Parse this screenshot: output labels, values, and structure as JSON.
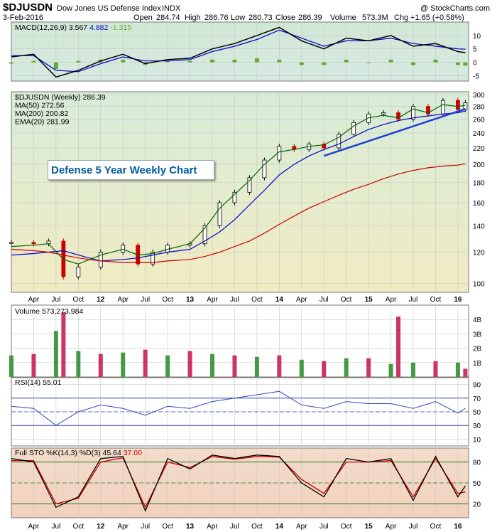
{
  "header": {
    "symbol": "$DJUSDN",
    "name": "Dow Jones US Defense Index",
    "exchange": "INDX",
    "date": "3-Feb-2016",
    "open_label": "Open",
    "open": "284.74",
    "high_label": "High",
    "high": "286.76",
    "low_label": "Low",
    "low": "280.73",
    "close_label": "Close",
    "close": "286.39",
    "volume_label": "Volume",
    "volume": "573.3M",
    "chg_label": "Chg",
    "chg": "+1.65 (+0.58%)",
    "watermark": "@ StockCharts.com"
  },
  "annotation": "Defense 5 Year Weekly Chart",
  "colors": {
    "price_up": "#000000",
    "price_down": "#cc0000",
    "ma50": "#0000cc",
    "ma200": "#cc0000",
    "ema20": "#006600",
    "trendline": "#1f3fd8",
    "macd": "#000000",
    "macd_signal": "#0000cc",
    "histogram": "#66aa33",
    "vol_up": "#449944",
    "vol_down": "#cc3366",
    "rsi": "#3344bb",
    "sto_k": "#000000",
    "sto_d": "#cc0000"
  },
  "chart_data": [
    {
      "panel": "MACD",
      "type": "line",
      "legend": [
        "MACD(12,26,9)",
        "3.567",
        "4.882",
        "-1.315"
      ],
      "ylim": [
        -7,
        15
      ],
      "y_ticks": [
        -5,
        0,
        5,
        10
      ],
      "x": [
        "2011-01",
        "2011-04",
        "2011-07",
        "2011-10",
        "2012-01",
        "2012-04",
        "2012-07",
        "2012-10",
        "2013-01",
        "2013-04",
        "2013-07",
        "2013-10",
        "2014-01",
        "2014-04",
        "2014-07",
        "2014-10",
        "2015-01",
        "2015-04",
        "2015-07",
        "2015-10",
        "2016-01",
        "2016-02"
      ],
      "series": [
        {
          "role": "macd",
          "values": [
            2,
            3,
            -5.5,
            -3,
            0.5,
            3,
            -0.5,
            1,
            1.5,
            5,
            7,
            10,
            13,
            8,
            5,
            9,
            8,
            10,
            6,
            7,
            4,
            3.6
          ]
        },
        {
          "role": "signal",
          "values": [
            2.5,
            2.5,
            -3,
            -3.5,
            -0.5,
            2,
            0.5,
            0.5,
            1,
            4,
            6,
            8.5,
            12,
            9,
            6,
            8,
            8,
            9,
            7,
            6,
            5,
            4.9
          ]
        }
      ]
    },
    {
      "panel": "Price",
      "type": "candlestick",
      "legend": [
        "$DJUSDN (Weekly) 286.39",
        "MA(50) 272.56",
        "MA(200) 200.82",
        "EMA(20) 281.99"
      ],
      "ylim": [
        95,
        305
      ],
      "log_scale": true,
      "y_ticks": [
        100,
        120,
        140,
        160,
        180,
        200,
        220,
        240,
        260,
        280,
        300
      ],
      "x_ticks": [
        "Apr",
        "Jul",
        "Oct",
        "12",
        "Apr",
        "Jul",
        "Oct",
        "13",
        "Apr",
        "Jul",
        "Oct",
        "14",
        "Apr",
        "Jul",
        "Oct",
        "15",
        "Apr",
        "Jul",
        "Oct",
        "16"
      ],
      "x": [
        "2011-01",
        "2011-04",
        "2011-06",
        "2011-08",
        "2011-10",
        "2012-01",
        "2012-04",
        "2012-06",
        "2012-08",
        "2012-10",
        "2013-01",
        "2013-03",
        "2013-05",
        "2013-07",
        "2013-09",
        "2013-11",
        "2014-01",
        "2014-03",
        "2014-05",
        "2014-07",
        "2014-09",
        "2014-11",
        "2015-01",
        "2015-03",
        "2015-05",
        "2015-07",
        "2015-09",
        "2015-11",
        "2016-01",
        "2016-02"
      ],
      "close": [
        127,
        126,
        128,
        104,
        110,
        120,
        125,
        112,
        120,
        125,
        126,
        140,
        160,
        170,
        185,
        205,
        222,
        218,
        225,
        220,
        238,
        255,
        268,
        270,
        260,
        280,
        268,
        290,
        275,
        286
      ],
      "series": [
        {
          "name": "MA(50)",
          "values": [
            118,
            119,
            120,
            121,
            118,
            114,
            115,
            116,
            118,
            120,
            122,
            128,
            135,
            145,
            158,
            172,
            188,
            200,
            210,
            218,
            225,
            235,
            245,
            252,
            258,
            262,
            265,
            268,
            270,
            272.56
          ]
        },
        {
          "name": "MA(200)",
          "values": [
            122,
            121,
            120,
            118,
            116,
            114,
            113,
            113,
            113,
            114,
            115,
            117,
            120,
            124,
            128,
            134,
            141,
            148,
            155,
            161,
            167,
            173,
            178,
            184,
            189,
            193,
            196,
            198,
            199,
            200.82
          ]
        },
        {
          "name": "EMA(20)",
          "values": [
            124,
            125,
            126,
            115,
            112,
            118,
            122,
            118,
            119,
            122,
            126,
            138,
            155,
            168,
            182,
            200,
            215,
            218,
            222,
            224,
            234,
            250,
            262,
            266,
            262,
            276,
            270,
            283,
            280,
            281.99
          ]
        },
        {
          "role": "trendline",
          "x": [
            "2014-07",
            "2016-02"
          ],
          "values": [
            210,
            276
          ]
        }
      ]
    },
    {
      "panel": "Volume",
      "type": "bar",
      "legend": [
        "Volume 573,273,984"
      ],
      "ylim": [
        0,
        5000000000
      ],
      "y_ticks": [
        "1B",
        "2B",
        "3B",
        "4B"
      ],
      "x": [
        "2011-01",
        "2011-04",
        "2011-07",
        "2011-08",
        "2011-10",
        "2012-01",
        "2012-04",
        "2012-07",
        "2012-10",
        "2013-01",
        "2013-04",
        "2013-07",
        "2013-10",
        "2014-01",
        "2014-04",
        "2014-07",
        "2014-10",
        "2015-01",
        "2015-04",
        "2015-05",
        "2015-07",
        "2015-10",
        "2016-01",
        "2016-02"
      ],
      "values": [
        1500000000,
        1600000000,
        3200000000,
        4500000000,
        1800000000,
        1600000000,
        1700000000,
        1900000000,
        1500000000,
        1800000000,
        1600000000,
        1500000000,
        1400000000,
        1500000000,
        1200000000,
        1100000000,
        1300000000,
        1300000000,
        900000000,
        4200000000,
        1000000000,
        1100000000,
        1000000000,
        573273984
      ]
    },
    {
      "panel": "RSI",
      "type": "line",
      "legend": [
        "RSI(14)",
        "55.01"
      ],
      "ylim": [
        0,
        100
      ],
      "y_ticks": [
        10,
        30,
        50,
        70,
        90
      ],
      "x": [
        "2011-01",
        "2011-04",
        "2011-07",
        "2011-10",
        "2012-01",
        "2012-04",
        "2012-07",
        "2012-10",
        "2013-01",
        "2013-04",
        "2013-07",
        "2013-10",
        "2014-01",
        "2014-04",
        "2014-07",
        "2014-10",
        "2015-01",
        "2015-04",
        "2015-07",
        "2015-10",
        "2016-01",
        "2016-02"
      ],
      "values": [
        58,
        55,
        30,
        50,
        60,
        55,
        45,
        58,
        55,
        65,
        70,
        75,
        80,
        60,
        55,
        65,
        62,
        62,
        55,
        65,
        48,
        55.01
      ]
    },
    {
      "panel": "Full STO",
      "type": "line",
      "legend": [
        "Full STO %K(14,3) %D(3)",
        "45.64",
        "37.00"
      ],
      "ylim": [
        0,
        100
      ],
      "y_ticks": [
        20,
        50,
        80
      ],
      "x": [
        "2011-01",
        "2011-04",
        "2011-07",
        "2011-10",
        "2012-01",
        "2012-04",
        "2012-07",
        "2012-10",
        "2013-01",
        "2013-04",
        "2013-07",
        "2013-10",
        "2014-01",
        "2014-04",
        "2014-07",
        "2014-10",
        "2015-01",
        "2015-04",
        "2015-07",
        "2015-10",
        "2016-01",
        "2016-02"
      ],
      "series": [
        {
          "name": "%K",
          "values": [
            85,
            80,
            15,
            30,
            85,
            88,
            10,
            85,
            70,
            90,
            85,
            90,
            88,
            50,
            30,
            85,
            80,
            85,
            25,
            88,
            30,
            45.64
          ]
        },
        {
          "name": "%D",
          "values": [
            82,
            82,
            20,
            28,
            80,
            86,
            15,
            80,
            72,
            88,
            84,
            88,
            87,
            55,
            35,
            80,
            80,
            82,
            30,
            85,
            35,
            37.0
          ]
        }
      ]
    }
  ]
}
